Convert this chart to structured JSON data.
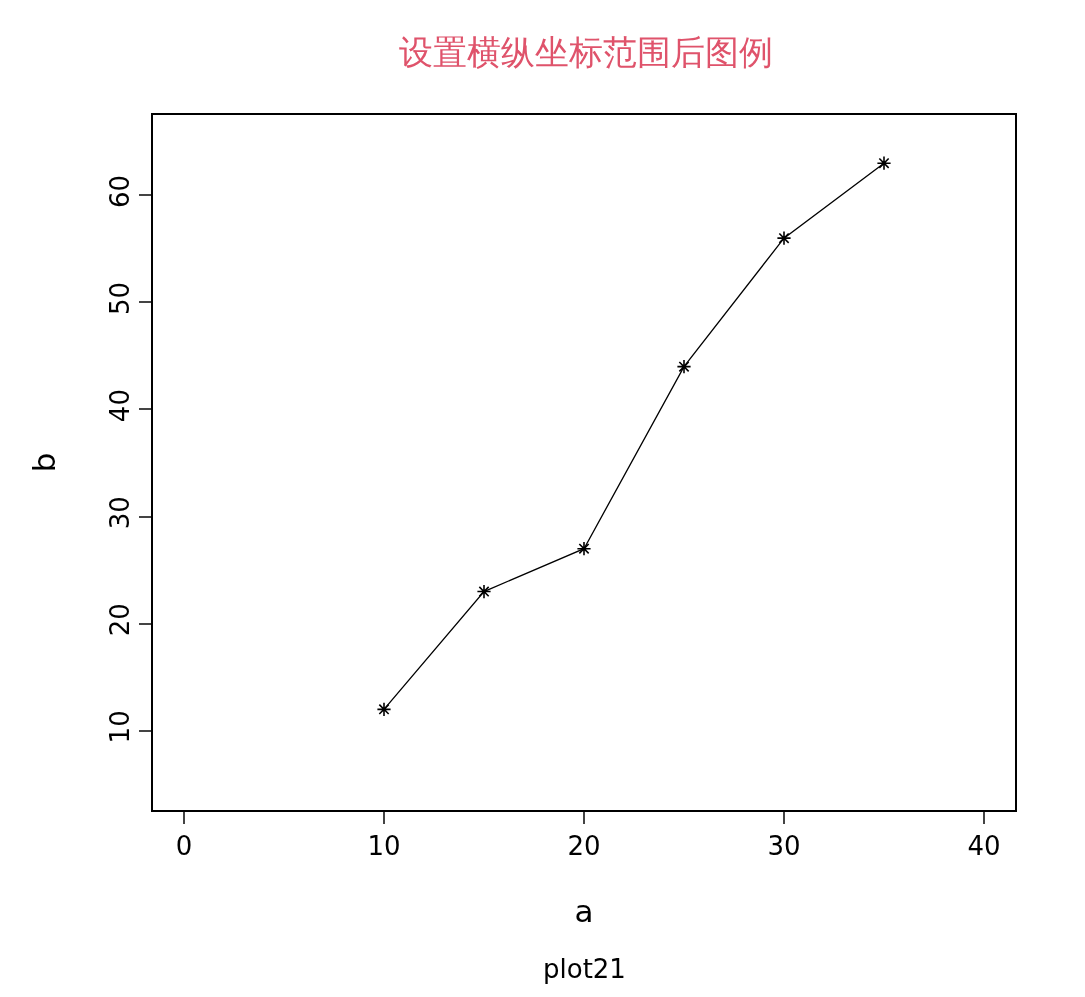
{
  "chart_data": {
    "type": "line",
    "title": "设置横纵坐标范围后图例",
    "xlabel": "a",
    "ylabel": "b",
    "annotations": [
      "plot21"
    ],
    "x": [
      10,
      15,
      20,
      25,
      30,
      35
    ],
    "series": [
      {
        "color": "#000000",
        "values": [
          12,
          23,
          27,
          44,
          56,
          63
        ]
      }
    ],
    "marker": "cross",
    "line_style": "solid",
    "xlim": [
      -1.55,
      41.55
    ],
    "xticks": [
      0,
      10,
      20,
      30,
      40
    ],
    "ylim": [
      2.6,
      67.5
    ],
    "yticks": [
      10,
      20,
      30,
      40,
      50,
      60
    ],
    "legend": false
  }
}
